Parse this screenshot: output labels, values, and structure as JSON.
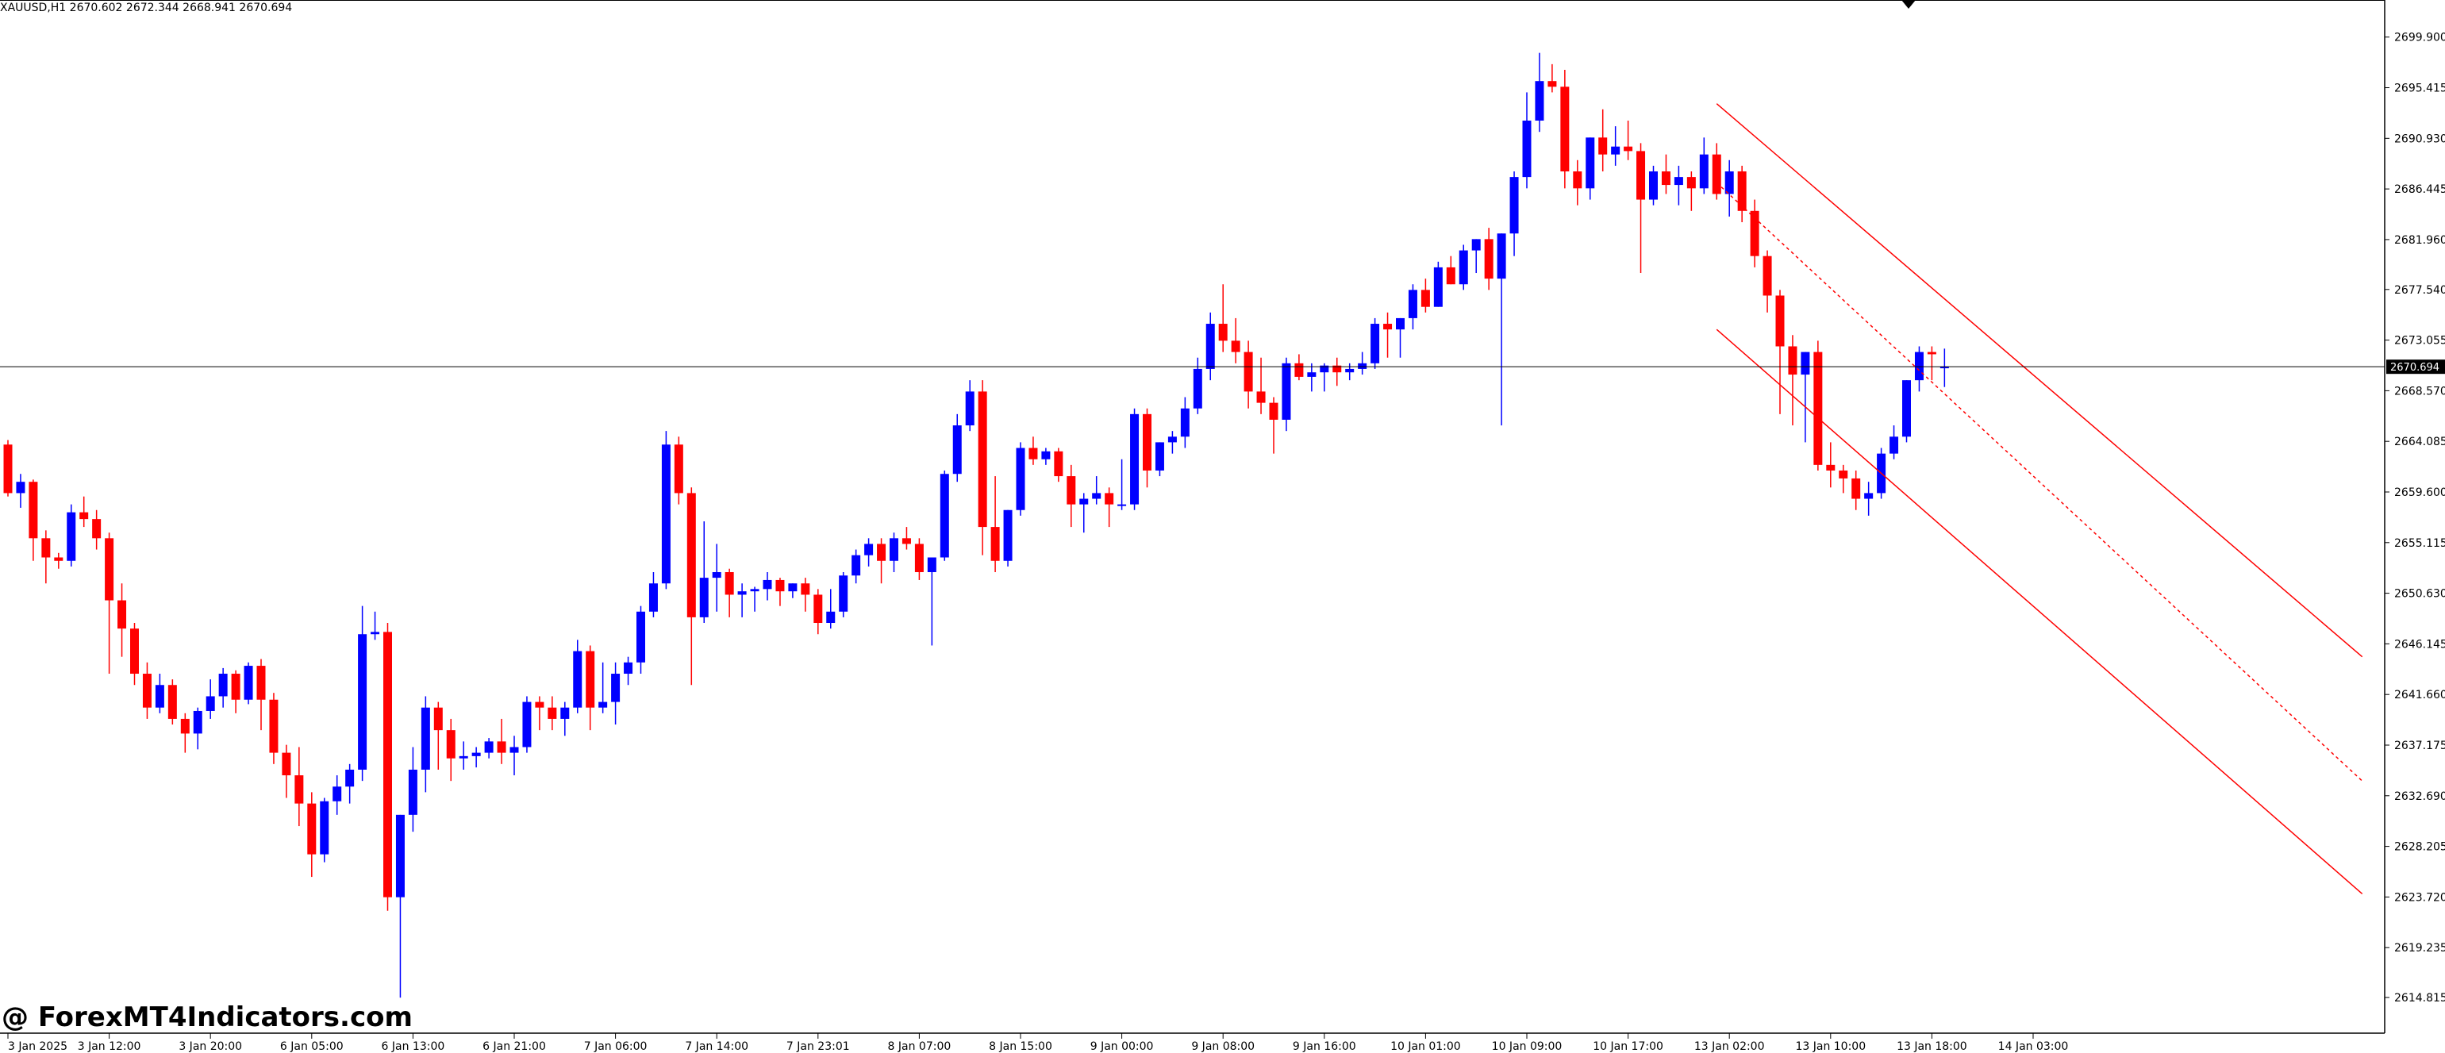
{
  "header": {
    "info": "XAUUSD,H1  2670.602 2672.344 2668.941 2670.694"
  },
  "watermark": {
    "text": "@ ForexMT4Indicators.com"
  },
  "colors": {
    "bull": "#0000ff",
    "bear": "#ff0000",
    "price_line": "#000000",
    "channel": "#ff0000",
    "current_price_bg": "#000000",
    "current_price_fg": "#ffffff"
  },
  "current_price_label": "2670.694",
  "chart_data": {
    "type": "candlestick",
    "symbol": "XAUUSD",
    "timeframe": "H1",
    "ylim": [
      2612.5,
      2702.2
    ],
    "y_ticks": [
      "2699.900",
      "2695.415",
      "2690.930",
      "2686.445",
      "2681.960",
      "2677.540",
      "2673.055",
      "2668.570",
      "2664.085",
      "2659.600",
      "2655.115",
      "2650.630",
      "2646.145",
      "2641.660",
      "2637.175",
      "2632.690",
      "2628.205",
      "2623.720",
      "2619.235",
      "2614.815"
    ],
    "x_ticks": [
      {
        "label": "3 Jan 2025",
        "index": 0
      },
      {
        "label": "3 Jan 12:00",
        "index": 8
      },
      {
        "label": "3 Jan 20:00",
        "index": 16
      },
      {
        "label": "6 Jan 05:00",
        "index": 24
      },
      {
        "label": "6 Jan 13:00",
        "index": 32
      },
      {
        "label": "6 Jan 21:00",
        "index": 40
      },
      {
        "label": "7 Jan 06:00",
        "index": 48
      },
      {
        "label": "7 Jan 14:00",
        "index": 56
      },
      {
        "label": "7 Jan 23:01",
        "index": 64
      },
      {
        "label": "8 Jan 07:00",
        "index": 72
      },
      {
        "label": "8 Jan 15:00",
        "index": 80
      },
      {
        "label": "9 Jan 00:00",
        "index": 88
      },
      {
        "label": "9 Jan 08:00",
        "index": 96
      },
      {
        "label": "9 Jan 16:00",
        "index": 104
      },
      {
        "label": "10 Jan 01:00",
        "index": 112
      },
      {
        "label": "10 Jan 09:00",
        "index": 120
      },
      {
        "label": "10 Jan 17:00",
        "index": 128
      },
      {
        "label": "13 Jan 02:00",
        "index": 136
      },
      {
        "label": "13 Jan 10:00",
        "index": 144
      },
      {
        "label": "13 Jan 18:00",
        "index": 152
      },
      {
        "label": "14 Jan 03:00",
        "index": 160
      }
    ],
    "current_price": 2670.694,
    "candles": [
      [
        2663.8,
        2664.2,
        2659.2,
        2659.5
      ],
      [
        2659.5,
        2661.2,
        2658.2,
        2660.5
      ],
      [
        2660.5,
        2660.7,
        2653.5,
        2655.5
      ],
      [
        2655.5,
        2656.2,
        2651.5,
        2653.8
      ],
      [
        2653.8,
        2654.2,
        2652.8,
        2653.5
      ],
      [
        2653.5,
        2658.5,
        2653.0,
        2657.8
      ],
      [
        2657.8,
        2659.2,
        2656.5,
        2657.2
      ],
      [
        2657.2,
        2658.0,
        2654.5,
        2655.5
      ],
      [
        2655.5,
        2656.0,
        2643.5,
        2650.0
      ],
      [
        2650.0,
        2651.5,
        2645.0,
        2647.5
      ],
      [
        2647.5,
        2648.0,
        2642.5,
        2643.5
      ],
      [
        2643.5,
        2644.5,
        2639.5,
        2640.5
      ],
      [
        2640.5,
        2643.5,
        2640.0,
        2642.5
      ],
      [
        2642.5,
        2643.0,
        2639.0,
        2639.5
      ],
      [
        2639.5,
        2640.0,
        2636.5,
        2638.2
      ],
      [
        2638.2,
        2640.5,
        2636.8,
        2640.2
      ],
      [
        2640.2,
        2643.0,
        2639.5,
        2641.5
      ],
      [
        2641.5,
        2644.0,
        2640.5,
        2643.5
      ],
      [
        2643.5,
        2643.8,
        2640.0,
        2641.2
      ],
      [
        2641.2,
        2644.5,
        2640.8,
        2644.2
      ],
      [
        2644.2,
        2644.8,
        2638.5,
        2641.2
      ],
      [
        2641.2,
        2641.8,
        2635.5,
        2636.5
      ],
      [
        2636.5,
        2637.2,
        2632.5,
        2634.5
      ],
      [
        2634.5,
        2637.0,
        2630.0,
        2632.0
      ],
      [
        2632.0,
        2633.0,
        2625.5,
        2627.5
      ],
      [
        2627.5,
        2632.5,
        2626.8,
        2632.2
      ],
      [
        2632.2,
        2634.5,
        2631.0,
        2633.5
      ],
      [
        2633.5,
        2635.5,
        2632.0,
        2635.0
      ],
      [
        2635.0,
        2649.5,
        2634.0,
        2647.0
      ],
      [
        2647.0,
        2649.0,
        2646.5,
        2647.2
      ],
      [
        2647.2,
        2648.0,
        2622.5,
        2623.7
      ],
      [
        2623.7,
        2631.0,
        2614.8,
        2631.0
      ],
      [
        2631.0,
        2637.0,
        2629.5,
        2635.0
      ],
      [
        2635.0,
        2641.5,
        2633.0,
        2640.5
      ],
      [
        2640.5,
        2641.0,
        2635.0,
        2638.5
      ],
      [
        2638.5,
        2639.5,
        2634.0,
        2636.0
      ],
      [
        2636.0,
        2637.5,
        2635.0,
        2636.2
      ],
      [
        2636.2,
        2637.0,
        2635.2,
        2636.5
      ],
      [
        2636.5,
        2637.8,
        2636.0,
        2637.5
      ],
      [
        2637.5,
        2639.5,
        2635.5,
        2636.5
      ],
      [
        2636.5,
        2638.0,
        2634.5,
        2637.0
      ],
      [
        2637.0,
        2641.5,
        2636.5,
        2641.0
      ],
      [
        2641.0,
        2641.5,
        2638.5,
        2640.5
      ],
      [
        2640.5,
        2641.5,
        2638.5,
        2639.5
      ],
      [
        2639.5,
        2641.0,
        2638.0,
        2640.5
      ],
      [
        2640.5,
        2646.5,
        2640.0,
        2645.5
      ],
      [
        2645.5,
        2646.0,
        2638.5,
        2640.5
      ],
      [
        2640.5,
        2644.5,
        2640.0,
        2641.0
      ],
      [
        2641.0,
        2644.5,
        2639.0,
        2643.5
      ],
      [
        2643.5,
        2645.0,
        2642.5,
        2644.5
      ],
      [
        2644.5,
        2649.5,
        2643.5,
        2649.0
      ],
      [
        2649.0,
        2652.5,
        2648.5,
        2651.5
      ],
      [
        2651.5,
        2665.0,
        2651.0,
        2663.8
      ],
      [
        2663.8,
        2664.5,
        2658.5,
        2659.5
      ],
      [
        2659.5,
        2660.0,
        2642.5,
        2648.5
      ],
      [
        2648.5,
        2657.0,
        2648.0,
        2652.0
      ],
      [
        2652.0,
        2655.0,
        2649.0,
        2652.5
      ],
      [
        2652.5,
        2652.8,
        2648.5,
        2650.5
      ],
      [
        2650.5,
        2651.5,
        2648.5,
        2650.8
      ],
      [
        2650.8,
        2651.2,
        2649.0,
        2651.0
      ],
      [
        2651.0,
        2652.5,
        2650.0,
        2651.8
      ],
      [
        2651.8,
        2652.0,
        2649.5,
        2650.8
      ],
      [
        2650.8,
        2651.5,
        2650.2,
        2651.5
      ],
      [
        2651.5,
        2652.0,
        2649.0,
        2650.5
      ],
      [
        2650.5,
        2651.0,
        2647.0,
        2648.0
      ],
      [
        2648.0,
        2651.0,
        2647.5,
        2649.0
      ],
      [
        2649.0,
        2652.5,
        2648.5,
        2652.2
      ],
      [
        2652.2,
        2654.5,
        2651.5,
        2654.0
      ],
      [
        2654.0,
        2655.5,
        2653.0,
        2655.0
      ],
      [
        2655.0,
        2655.5,
        2651.5,
        2653.5
      ],
      [
        2653.5,
        2656.0,
        2652.5,
        2655.5
      ],
      [
        2655.5,
        2656.5,
        2654.5,
        2655.0
      ],
      [
        2655.0,
        2655.5,
        2651.8,
        2652.5
      ],
      [
        2652.5,
        2653.5,
        2646.0,
        2653.8
      ],
      [
        2653.8,
        2661.5,
        2653.5,
        2661.2
      ],
      [
        2661.2,
        2666.5,
        2660.5,
        2665.5
      ],
      [
        2665.5,
        2669.5,
        2665.0,
        2668.5
      ],
      [
        2668.5,
        2669.5,
        2654.0,
        2656.5
      ],
      [
        2656.5,
        2661.0,
        2652.5,
        2653.5
      ],
      [
        2653.5,
        2658.0,
        2653.0,
        2658.0
      ],
      [
        2658.0,
        2664.0,
        2657.5,
        2663.5
      ],
      [
        2663.5,
        2664.5,
        2662.0,
        2662.5
      ],
      [
        2662.5,
        2663.5,
        2662.0,
        2663.2
      ],
      [
        2663.2,
        2663.5,
        2660.5,
        2661.0
      ],
      [
        2661.0,
        2662.0,
        2656.5,
        2658.5
      ],
      [
        2658.5,
        2659.5,
        2656.0,
        2659.0
      ],
      [
        2659.0,
        2661.0,
        2658.5,
        2659.5
      ],
      [
        2659.5,
        2660.0,
        2656.5,
        2658.5
      ],
      [
        2658.5,
        2662.5,
        2658.0,
        2658.5
      ],
      [
        2658.5,
        2667.0,
        2658.0,
        2666.5
      ],
      [
        2666.5,
        2667.0,
        2660.0,
        2661.5
      ],
      [
        2661.5,
        2664.0,
        2661.0,
        2664.0
      ],
      [
        2664.0,
        2665.0,
        2663.0,
        2664.5
      ],
      [
        2664.5,
        2668.0,
        2663.5,
        2667.0
      ],
      [
        2667.0,
        2671.5,
        2666.5,
        2670.5
      ],
      [
        2670.5,
        2675.5,
        2669.5,
        2674.5
      ],
      [
        2674.5,
        2678.0,
        2672.0,
        2673.0
      ],
      [
        2673.0,
        2675.0,
        2671.0,
        2672.0
      ],
      [
        2672.0,
        2673.0,
        2667.0,
        2668.5
      ],
      [
        2668.5,
        2671.5,
        2666.5,
        2667.5
      ],
      [
        2667.5,
        2668.0,
        2663.0,
        2666.0
      ],
      [
        2666.0,
        2671.5,
        2665.0,
        2671.0
      ],
      [
        2671.0,
        2671.8,
        2669.5,
        2669.8
      ],
      [
        2669.8,
        2671.0,
        2668.5,
        2670.2
      ],
      [
        2670.2,
        2671.0,
        2668.5,
        2670.8
      ],
      [
        2670.8,
        2671.5,
        2669.0,
        2670.2
      ],
      [
        2670.2,
        2671.0,
        2669.5,
        2670.5
      ],
      [
        2670.5,
        2672.0,
        2670.0,
        2671.0
      ],
      [
        2671.0,
        2675.0,
        2670.5,
        2674.5
      ],
      [
        2674.5,
        2675.5,
        2671.5,
        2674.0
      ],
      [
        2674.0,
        2675.0,
        2671.5,
        2675.0
      ],
      [
        2675.0,
        2678.0,
        2674.0,
        2677.5
      ],
      [
        2677.5,
        2678.5,
        2675.5,
        2676.0
      ],
      [
        2676.0,
        2680.0,
        2676.0,
        2679.5
      ],
      [
        2679.5,
        2680.5,
        2678.0,
        2678.0
      ],
      [
        2678.0,
        2681.5,
        2677.5,
        2681.0
      ],
      [
        2681.0,
        2682.0,
        2679.0,
        2682.0
      ],
      [
        2682.0,
        2683.0,
        2677.5,
        2678.5
      ],
      [
        2678.5,
        2682.5,
        2665.5,
        2682.5
      ],
      [
        2682.5,
        2688.0,
        2680.5,
        2687.5
      ],
      [
        2687.5,
        2695.0,
        2686.5,
        2692.5
      ],
      [
        2692.5,
        2698.5,
        2691.5,
        2696.0
      ],
      [
        2696.0,
        2697.5,
        2695.0,
        2695.5
      ],
      [
        2695.5,
        2697.0,
        2686.5,
        2688.0
      ],
      [
        2688.0,
        2689.0,
        2685.0,
        2686.5
      ],
      [
        2686.5,
        2691.0,
        2685.5,
        2691.0
      ],
      [
        2691.0,
        2693.5,
        2688.0,
        2689.5
      ],
      [
        2689.5,
        2692.0,
        2688.5,
        2690.2
      ],
      [
        2690.2,
        2692.5,
        2689.0,
        2689.8
      ],
      [
        2689.8,
        2690.5,
        2679.0,
        2685.5
      ],
      [
        2685.5,
        2688.5,
        2685.0,
        2688.0
      ],
      [
        2688.0,
        2689.5,
        2686.0,
        2686.8
      ],
      [
        2686.8,
        2688.5,
        2685.0,
        2687.5
      ],
      [
        2687.5,
        2688.0,
        2684.5,
        2686.5
      ],
      [
        2686.5,
        2691.0,
        2686.0,
        2689.5
      ],
      [
        2689.5,
        2690.5,
        2685.5,
        2686.0
      ],
      [
        2686.0,
        2689.0,
        2684.0,
        2688.0
      ],
      [
        2688.0,
        2688.5,
        2683.5,
        2684.5
      ],
      [
        2684.5,
        2685.5,
        2679.5,
        2680.5
      ],
      [
        2680.5,
        2681.0,
        2675.5,
        2677.0
      ],
      [
        2677.0,
        2677.5,
        2666.5,
        2672.5
      ],
      [
        2672.5,
        2673.5,
        2665.5,
        2670.0
      ],
      [
        2670.0,
        2672.0,
        2664.0,
        2672.0
      ],
      [
        2672.0,
        2673.0,
        2661.5,
        2662.0
      ],
      [
        2662.0,
        2664.0,
        2660.0,
        2661.5
      ],
      [
        2661.5,
        2662.0,
        2659.5,
        2660.8
      ],
      [
        2660.8,
        2661.5,
        2658.0,
        2659.0
      ],
      [
        2659.0,
        2660.5,
        2657.5,
        2659.5
      ],
      [
        2659.5,
        2663.5,
        2659.0,
        2663.0
      ],
      [
        2663.0,
        2665.5,
        2662.5,
        2664.5
      ],
      [
        2664.5,
        2669.5,
        2664.0,
        2669.5
      ],
      [
        2669.5,
        2672.5,
        2668.5,
        2672.0
      ],
      [
        2672.0,
        2672.5,
        2669.5,
        2671.8
      ],
      [
        2670.6,
        2672.3,
        2668.9,
        2670.7
      ]
    ],
    "channel": {
      "upper": [
        [
          135,
          2694.0
        ],
        [
          186,
          2645.0
        ]
      ],
      "middle": [
        [
          135,
          2687.0
        ],
        [
          186,
          2634.0
        ]
      ],
      "lower": [
        [
          135,
          2674.0
        ],
        [
          186,
          2624.0
        ]
      ]
    }
  }
}
